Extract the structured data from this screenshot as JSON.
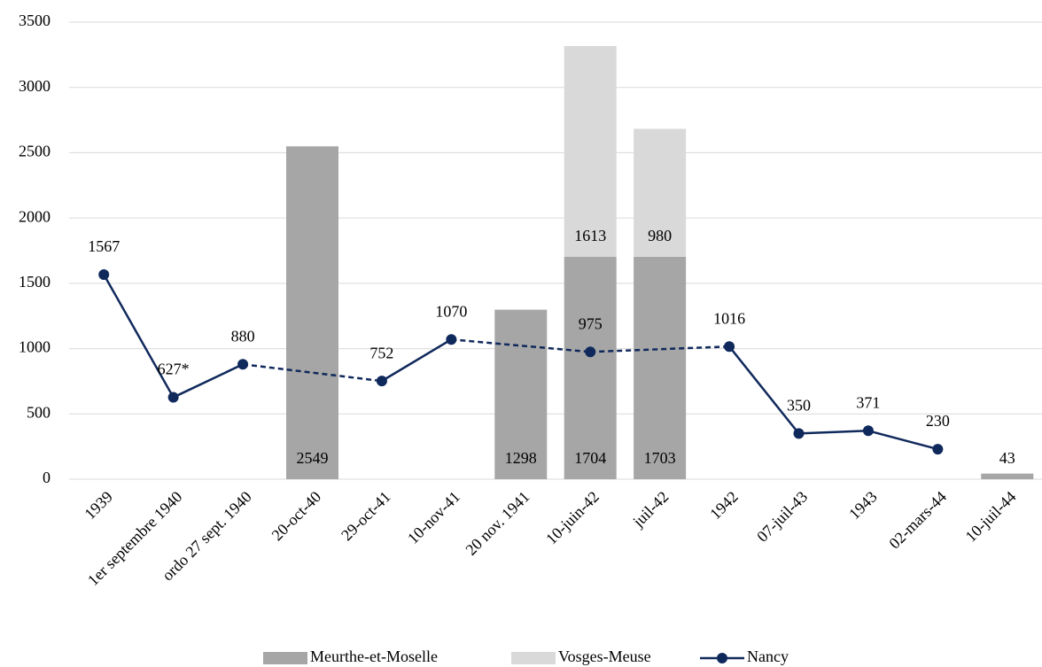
{
  "chart_data": {
    "type": "bar-line",
    "categories": [
      "1939",
      "1er septembre 1940",
      "ordo 27 sept. 1940",
      "20-oct-40",
      "29-oct-41",
      "10-nov-41",
      "20 nov. 1941",
      "10-juin-42",
      "juil-42",
      "1942",
      "07-juil-43",
      "1943",
      "02-mars-44",
      "10-juil-44"
    ],
    "series": [
      {
        "name": "Meurthe-et-Moselle",
        "type": "bar",
        "stack": true,
        "color": "#a6a6a6",
        "values": [
          null,
          null,
          null,
          2549,
          null,
          null,
          1298,
          1704,
          1703,
          null,
          null,
          null,
          null,
          43
        ]
      },
      {
        "name": "Vosges-Meuse",
        "type": "bar",
        "stack": true,
        "color": "#d9d9d9",
        "values": [
          null,
          null,
          null,
          null,
          null,
          null,
          null,
          1613,
          980,
          null,
          null,
          null,
          null,
          null
        ]
      },
      {
        "name": "Nancy",
        "type": "line",
        "color": "#10295c",
        "values": [
          1567,
          627,
          880,
          null,
          752,
          1070,
          null,
          975,
          null,
          1016,
          350,
          371,
          230,
          null
        ],
        "value_labels": [
          null,
          "627*",
          null,
          null,
          null,
          null,
          null,
          null,
          null,
          null,
          null,
          null,
          null,
          null
        ]
      }
    ],
    "ylim": [
      0,
      3500
    ],
    "yticks": [
      0,
      500,
      1000,
      1500,
      2000,
      2500,
      3000,
      3500
    ],
    "grid": true
  }
}
